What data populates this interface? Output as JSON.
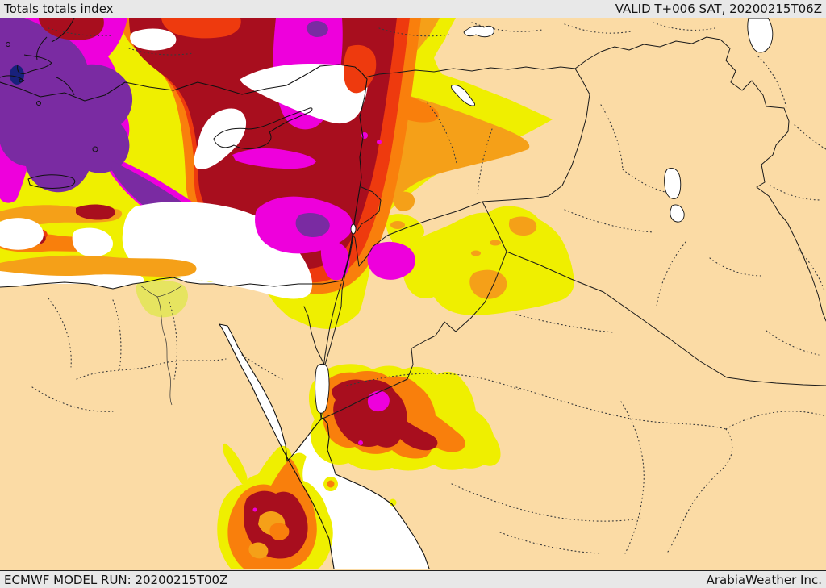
{
  "header": {
    "title": "Totals totals index",
    "valid_label": "VALID T+006 SAT, 20200215T06Z"
  },
  "footer": {
    "model_run": "ECMWF MODEL RUN: 20200215T00Z",
    "brand": "ArabiaWeather Inc."
  },
  "map": {
    "type": "filled-contour weather model map",
    "parameter": "Totals totals index",
    "region": "Eastern Mediterranean / Middle East",
    "palette": {
      "bar": "#E8E8E8",
      "text": "#141414",
      "land": "#FBDBA5",
      "sea": "#FFFFFF",
      "coastline": "#111111",
      "country_border": "#1A1A1A",
      "admin_dots": "#3A3A3A",
      "levels": [
        {
          "name": "yellow",
          "hex": "#EFEF00"
        },
        {
          "name": "gold",
          "hex": "#F5A018"
        },
        {
          "name": "orange",
          "hex": "#F97F0C"
        },
        {
          "name": "vermillion",
          "hex": "#EE3A0E"
        },
        {
          "name": "dark_red",
          "hex": "#A80E1E"
        },
        {
          "name": "magenta",
          "hex": "#EE00DC"
        },
        {
          "name": "purple",
          "hex": "#7A2BA2"
        },
        {
          "name": "navy",
          "hex": "#18217C"
        }
      ]
    }
  }
}
